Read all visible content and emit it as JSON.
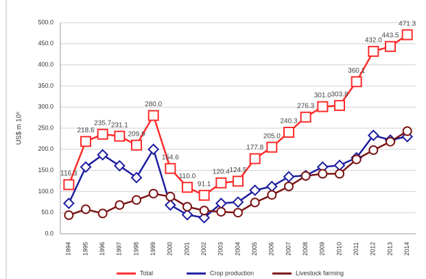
{
  "chart_data": {
    "type": "line",
    "y_label": "US$ m 10⁶",
    "categories": [
      "1994",
      "1995",
      "1996",
      "1997",
      "1998",
      "1999",
      "2000",
      "2001",
      "2002",
      "2003",
      "2004",
      "2005",
      "2006",
      "2007",
      "2008",
      "2009",
      "2010",
      "2011",
      "2012",
      "2013",
      "2014"
    ],
    "series": [
      {
        "name": "Total",
        "color": "#ff2a2a",
        "marker": "square",
        "values": [
          116.3,
          218.6,
          235.7,
          231.1,
          209.9,
          280.0,
          154.6,
          110.0,
          91.1,
          120.4,
          124.5,
          177.8,
          205.0,
          240.3,
          276.3,
          301.0,
          303.8,
          360.1,
          432.0,
          443.5,
          471.3
        ],
        "value_labels": [
          "116.3",
          "218.6",
          "235.7",
          "231.1",
          "209.9",
          "280.0",
          "154.6",
          "110.0",
          "91.1",
          "120.4",
          "124.5",
          "177.8",
          "205.0",
          "240.3",
          "276.3",
          "301.0",
          "303.8",
          "360.1",
          "432.0",
          "443.5",
          "471.3"
        ]
      },
      {
        "name": "Crop production",
        "color": "#1c1ca0",
        "marker": "diamond",
        "values": [
          72,
          158,
          187,
          161,
          133,
          200,
          68,
          45,
          38,
          72,
          75,
          103,
          112,
          135,
          138,
          158,
          162,
          180,
          233,
          222,
          230
        ]
      },
      {
        "name": "Livestock farming",
        "color": "#7a1212",
        "marker": "circle",
        "values": [
          44,
          58,
          48,
          68,
          80,
          95,
          88,
          64,
          55,
          52,
          50,
          74,
          92,
          112,
          137,
          142,
          142,
          176,
          198,
          218,
          243
        ]
      }
    ],
    "ylim": [
      0,
      500
    ],
    "yticks": [
      {
        "value": 0,
        "label": "0.0"
      },
      {
        "value": 50,
        "label": "50.0"
      },
      {
        "value": 100,
        "label": "100.0"
      },
      {
        "value": 150,
        "label": "150.0"
      },
      {
        "value": 200,
        "label": "200.0"
      },
      {
        "value": 250,
        "label": "250.0"
      },
      {
        "value": 300,
        "label": "300.0"
      },
      {
        "value": 350,
        "label": "350.0"
      },
      {
        "value": 400,
        "label": "400.0"
      },
      {
        "value": 450,
        "label": "450.0"
      },
      {
        "value": 500,
        "label": "500.0"
      }
    ],
    "grid": true,
    "legend": "bottom"
  }
}
